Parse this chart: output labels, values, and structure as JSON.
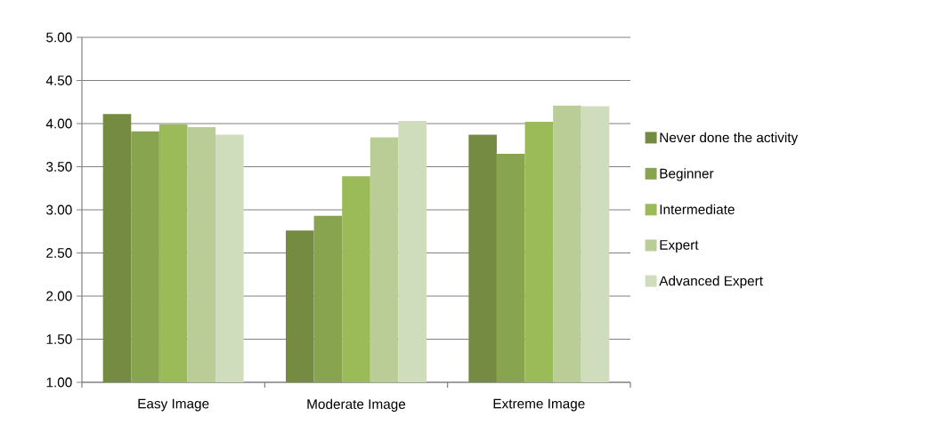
{
  "chart_data": {
    "type": "bar",
    "categories": [
      "Easy Image",
      "Moderate Image",
      "Extreme Image"
    ],
    "series": [
      {
        "name": "Never done the activity",
        "color": "#758b42",
        "values": [
          4.11,
          2.76,
          3.87
        ]
      },
      {
        "name": "Beginner",
        "color": "#89a44e",
        "values": [
          3.91,
          2.93,
          3.65
        ]
      },
      {
        "name": "Intermediate",
        "color": "#9bbb59",
        "values": [
          3.99,
          3.39,
          4.02
        ]
      },
      {
        "name": "Expert",
        "color": "#bacd97",
        "values": [
          3.96,
          3.84,
          4.21
        ]
      },
      {
        "name": "Advanced Expert",
        "color": "#d0ddbd",
        "values": [
          3.87,
          4.03,
          4.2
        ]
      }
    ],
    "ylim": [
      1,
      5
    ],
    "yticks": [
      {
        "value": 1,
        "label": "1.00"
      },
      {
        "value": 1.5,
        "label": "1.50"
      },
      {
        "value": 2,
        "label": "2.00"
      },
      {
        "value": 2.5,
        "label": "2.50"
      },
      {
        "value": 3,
        "label": "3.00"
      },
      {
        "value": 3.5,
        "label": "3.50"
      },
      {
        "value": 4,
        "label": "4.00"
      },
      {
        "value": 4.5,
        "label": "4.50"
      },
      {
        "value": 5,
        "label": "5.00"
      }
    ],
    "grid": "y",
    "legend": "right"
  }
}
